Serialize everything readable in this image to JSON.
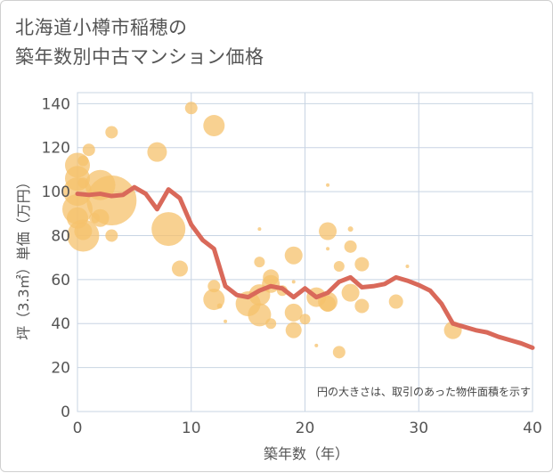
{
  "title_line1": "北海道小樽市稲穂の",
  "title_line2": "築年数別中古マンション価格",
  "note": "円の大きさは、取引のあった物件面積を示す",
  "colors": {
    "bubble": "#f5c16c",
    "line": "#d9695a",
    "grid": "#c8d4e3",
    "border": "#d0d0d0"
  },
  "chart_data": {
    "type": "scatter",
    "xlabel": "築年数（年）",
    "ylabel": "坪（3.3㎡）単価（万円）",
    "xlim": [
      0,
      40
    ],
    "ylim": [
      0,
      145
    ],
    "xticks": [
      0,
      10,
      20,
      30,
      40
    ],
    "yticks": [
      0,
      20,
      40,
      60,
      80,
      100,
      120,
      140
    ],
    "grid": true,
    "bubbles": [
      {
        "x": 0,
        "y": 112,
        "r": 14
      },
      {
        "x": 0,
        "y": 106,
        "r": 14
      },
      {
        "x": 0,
        "y": 100,
        "r": 16
      },
      {
        "x": 0,
        "y": 92,
        "r": 17
      },
      {
        "x": 0,
        "y": 88,
        "r": 12
      },
      {
        "x": 0.5,
        "y": 80,
        "r": 18
      },
      {
        "x": 0.5,
        "y": 82,
        "r": 10
      },
      {
        "x": 0.5,
        "y": 114,
        "r": 6
      },
      {
        "x": 0.5,
        "y": 104,
        "r": 6
      },
      {
        "x": 1,
        "y": 119,
        "r": 7
      },
      {
        "x": 1.5,
        "y": 88,
        "r": 6
      },
      {
        "x": 2,
        "y": 103,
        "r": 17
      },
      {
        "x": 2,
        "y": 88,
        "r": 10
      },
      {
        "x": 3,
        "y": 96,
        "r": 28
      },
      {
        "x": 3,
        "y": 80,
        "r": 7
      },
      {
        "x": 3,
        "y": 127,
        "r": 7
      },
      {
        "x": 7,
        "y": 118,
        "r": 11
      },
      {
        "x": 8,
        "y": 83,
        "r": 19
      },
      {
        "x": 9,
        "y": 65,
        "r": 9
      },
      {
        "x": 10,
        "y": 138,
        "r": 7
      },
      {
        "x": 12,
        "y": 130,
        "r": 12
      },
      {
        "x": 12,
        "y": 57,
        "r": 7
      },
      {
        "x": 12,
        "y": 51,
        "r": 12
      },
      {
        "x": 12.5,
        "y": 48,
        "r": 3
      },
      {
        "x": 13,
        "y": 41,
        "r": 2
      },
      {
        "x": 15,
        "y": 49,
        "r": 14
      },
      {
        "x": 16,
        "y": 44,
        "r": 13
      },
      {
        "x": 16,
        "y": 53,
        "r": 12
      },
      {
        "x": 16,
        "y": 68,
        "r": 6
      },
      {
        "x": 16,
        "y": 83,
        "r": 2
      },
      {
        "x": 17,
        "y": 61,
        "r": 9
      },
      {
        "x": 17,
        "y": 58,
        "r": 10
      },
      {
        "x": 17,
        "y": 40,
        "r": 6
      },
      {
        "x": 18,
        "y": 55,
        "r": 6
      },
      {
        "x": 19,
        "y": 71,
        "r": 10
      },
      {
        "x": 19,
        "y": 45,
        "r": 10
      },
      {
        "x": 19,
        "y": 37,
        "r": 9
      },
      {
        "x": 19,
        "y": 59,
        "r": 2
      },
      {
        "x": 20,
        "y": 42,
        "r": 6
      },
      {
        "x": 21,
        "y": 52,
        "r": 11
      },
      {
        "x": 21,
        "y": 30,
        "r": 2
      },
      {
        "x": 22,
        "y": 82,
        "r": 10
      },
      {
        "x": 22,
        "y": 49,
        "r": 9
      },
      {
        "x": 22,
        "y": 50,
        "r": 11
      },
      {
        "x": 22,
        "y": 103,
        "r": 2
      },
      {
        "x": 22,
        "y": 74,
        "r": 2
      },
      {
        "x": 23,
        "y": 66,
        "r": 6
      },
      {
        "x": 23,
        "y": 27,
        "r": 7
      },
      {
        "x": 24,
        "y": 75,
        "r": 7
      },
      {
        "x": 24,
        "y": 54,
        "r": 10
      },
      {
        "x": 24,
        "y": 83,
        "r": 3
      },
      {
        "x": 25,
        "y": 67,
        "r": 8
      },
      {
        "x": 25,
        "y": 48,
        "r": 8
      },
      {
        "x": 28,
        "y": 50,
        "r": 8
      },
      {
        "x": 29,
        "y": 66,
        "r": 2
      },
      {
        "x": 33,
        "y": 37,
        "r": 10
      }
    ],
    "series": [
      {
        "x": [
          0,
          1,
          2,
          3,
          4,
          5,
          6,
          7,
          8,
          9,
          10,
          11,
          12,
          13,
          14,
          15,
          16,
          17,
          18,
          19,
          20,
          21,
          22,
          23,
          24,
          25,
          26,
          27,
          28,
          29,
          30,
          31,
          32,
          33,
          34,
          35,
          36,
          37,
          38,
          39,
          40
        ],
        "y": [
          99,
          98.5,
          99,
          98,
          98.5,
          102,
          99,
          92,
          101,
          97,
          85,
          78,
          74,
          57,
          53,
          52,
          55,
          57,
          56,
          52,
          56,
          52,
          54,
          59,
          61,
          56.5,
          57,
          58,
          61,
          59.5,
          57.5,
          55,
          49,
          40,
          38.5,
          37,
          36,
          34,
          32.5,
          31,
          29
        ]
      }
    ]
  }
}
